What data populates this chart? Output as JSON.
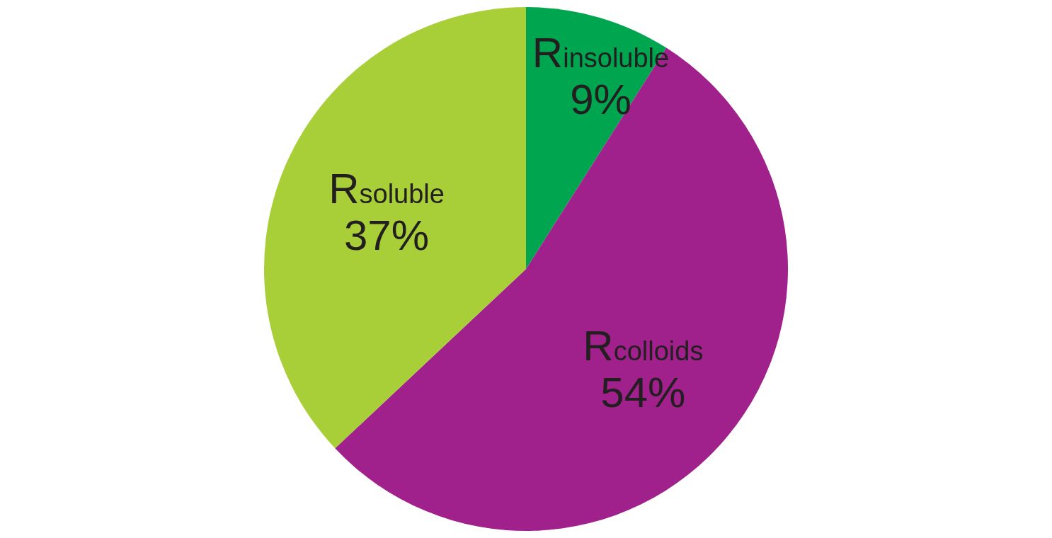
{
  "chart_data": {
    "type": "pie",
    "categories": [
      "R$_{insoluble}$",
      "R$_{colloids}$",
      "R$_{soluble}$"
    ],
    "values": [
      9,
      54,
      37
    ],
    "colors": [
      "#00a54f",
      "#a0218c",
      "#a8cf38"
    ],
    "value_labels": [
      "9%",
      "54%",
      "37%"
    ],
    "legend": false
  }
}
